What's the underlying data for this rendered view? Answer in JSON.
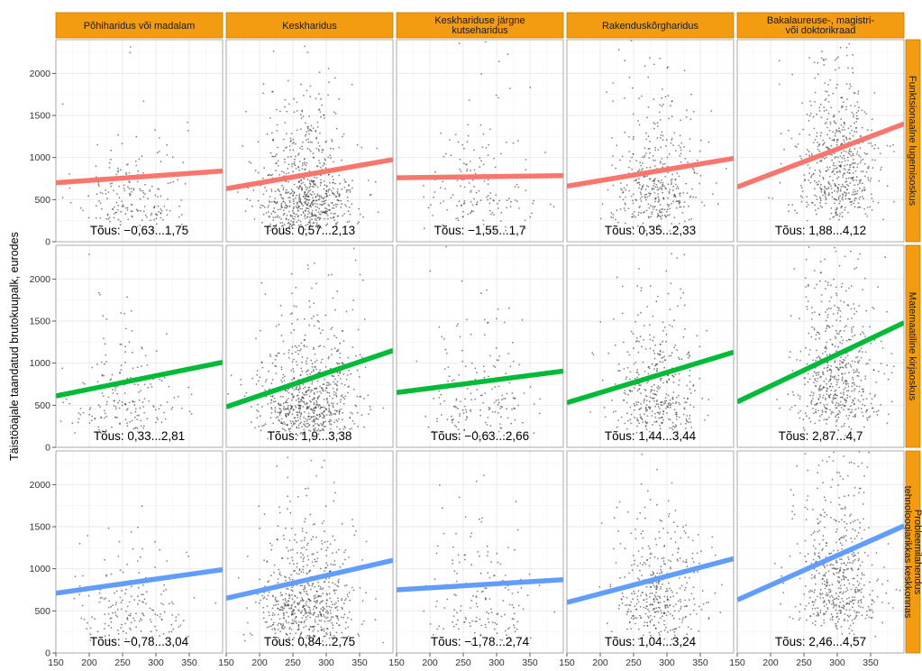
{
  "chart_data": {
    "type": "scatter",
    "ylabel": "Täistööajale taandatud brutokuupalk, eurodes",
    "xlabel": "",
    "xlim": [
      150,
      400
    ],
    "ylim": [
      0,
      2400
    ],
    "x_ticks": [
      150,
      200,
      250,
      300,
      350
    ],
    "y_ticks": [
      0,
      500,
      1000,
      1500,
      2000
    ],
    "grid": true,
    "columns": [
      "Põhiharidus või madalam",
      "Keskharidus",
      "Keskhariduse järgne kutseharidus",
      "Rakenduskõrgharidus",
      "Bakalaureuse-, magistri- või doktorikraad"
    ],
    "rows": [
      {
        "name": "Funktsionaalne lugemisoskus",
        "color": "#f8766d"
      },
      {
        "name": "Matemaatiline kirjaoskus",
        "color": "#00ba38"
      },
      {
        "name": "Probleemilahendus tehnoloogiarikkas keskkonnas",
        "color": "#619cff"
      }
    ],
    "panels": [
      [
        {
          "fit": [
            150,
            700,
            400,
            840
          ],
          "label": "Tõus: −0,63...1,75",
          "n": 200,
          "x_mean": 262,
          "x_sd": 42,
          "y_median": 560,
          "y_spread": 0.55
        },
        {
          "fit": [
            150,
            630,
            400,
            975
          ],
          "label": "Tõus: 0,57...2,13",
          "n": 750,
          "x_mean": 272,
          "x_sd": 36,
          "y_median": 600,
          "y_spread": 0.6
        },
        {
          "fit": [
            150,
            760,
            400,
            785
          ],
          "label": "Tõus: −1,55...1,7",
          "n": 170,
          "x_mean": 275,
          "x_sd": 38,
          "y_median": 620,
          "y_spread": 0.6
        },
        {
          "fit": [
            150,
            660,
            400,
            990
          ],
          "label": "Tõus: 0,35...2,33",
          "n": 420,
          "x_mean": 285,
          "x_sd": 34,
          "y_median": 700,
          "y_spread": 0.55
        },
        {
          "fit": [
            150,
            650,
            400,
            1400
          ],
          "label": "Tõus: 1,88...4,12",
          "n": 600,
          "x_mean": 300,
          "x_sd": 32,
          "y_median": 900,
          "y_spread": 0.55
        }
      ],
      [
        {
          "fit": [
            150,
            610,
            400,
            1010
          ],
          "label": "Tõus: 0,33...2,81",
          "n": 200,
          "x_mean": 255,
          "x_sd": 42,
          "y_median": 560,
          "y_spread": 0.55
        },
        {
          "fit": [
            150,
            480,
            400,
            1150
          ],
          "label": "Tõus: 1,9...3,38",
          "n": 750,
          "x_mean": 272,
          "x_sd": 36,
          "y_median": 600,
          "y_spread": 0.6
        },
        {
          "fit": [
            150,
            650,
            400,
            905
          ],
          "label": "Tõus: −0,63...2,66",
          "n": 170,
          "x_mean": 275,
          "x_sd": 38,
          "y_median": 620,
          "y_spread": 0.6
        },
        {
          "fit": [
            150,
            530,
            400,
            1130
          ],
          "label": "Tõus: 1,44...3,44",
          "n": 420,
          "x_mean": 285,
          "x_sd": 34,
          "y_median": 700,
          "y_spread": 0.55
        },
        {
          "fit": [
            150,
            540,
            400,
            1480
          ],
          "label": "Tõus: 2,87...4,7",
          "n": 600,
          "x_mean": 300,
          "x_sd": 32,
          "y_median": 900,
          "y_spread": 0.55
        }
      ],
      [
        {
          "fit": [
            150,
            710,
            400,
            990
          ],
          "label": "Tõus: −0,78...3,04",
          "n": 180,
          "x_mean": 260,
          "x_sd": 42,
          "y_median": 560,
          "y_spread": 0.55
        },
        {
          "fit": [
            150,
            650,
            400,
            1100
          ],
          "label": "Tõus: 0,84...2,75",
          "n": 650,
          "x_mean": 272,
          "x_sd": 36,
          "y_median": 600,
          "y_spread": 0.6
        },
        {
          "fit": [
            150,
            750,
            400,
            870
          ],
          "label": "Tõus: −1,78...2,74",
          "n": 160,
          "x_mean": 275,
          "x_sd": 38,
          "y_median": 620,
          "y_spread": 0.6
        },
        {
          "fit": [
            150,
            600,
            400,
            1120
          ],
          "label": "Tõus: 1,04...3,24",
          "n": 400,
          "x_mean": 285,
          "x_sd": 34,
          "y_median": 700,
          "y_spread": 0.55
        },
        {
          "fit": [
            150,
            630,
            400,
            1510
          ],
          "label": "Tõus: 2,46...4,57",
          "n": 550,
          "x_mean": 300,
          "x_sd": 32,
          "y_median": 900,
          "y_spread": 0.55
        }
      ]
    ]
  },
  "style": {
    "strip_fill": "#f39c12",
    "strip_border": "#c27808",
    "panel_bg": "#ffffff",
    "panel_border": "#9a9a9a",
    "grid_major": "#e9e9e9",
    "grid_minor": "#f4f4f4",
    "point_color": "#333333"
  }
}
